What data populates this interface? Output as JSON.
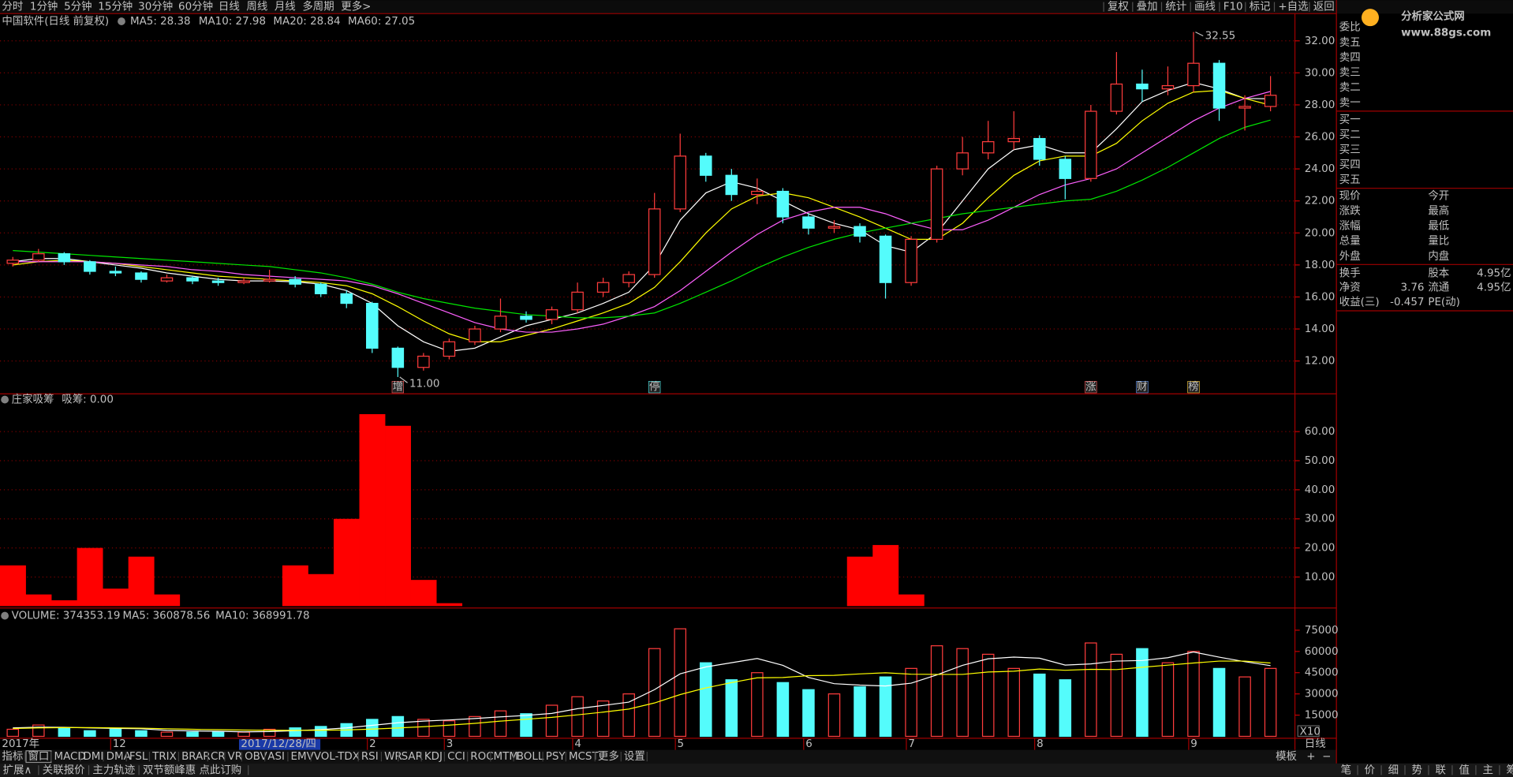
{
  "menu": {
    "tabs": [
      "分时",
      "1分钟",
      "5分钟",
      "15分钟",
      "30分钟",
      "60分钟",
      "日线",
      "周线",
      "月线",
      "多周期",
      "更多>"
    ],
    "active_index": 6,
    "tools": [
      "复权",
      "叠加",
      "统计",
      "画线",
      "F10",
      "标记",
      "+自选",
      "返回"
    ]
  },
  "logo": {
    "name": "分析家公式网",
    "url": "www.88gs.com"
  },
  "period_label": "日线",
  "chart_data": [
    {
      "type": "candlestick",
      "title": "中国软件(日线 前复权)",
      "categories": [
        "2017年",
        null,
        null,
        null,
        "12",
        null,
        null,
        null,
        null,
        "2017/12/28/四",
        null,
        null,
        null,
        null,
        "2",
        null,
        null,
        "3",
        null,
        null,
        null,
        null,
        "4",
        null,
        null,
        null,
        "5",
        null,
        null,
        null,
        null,
        "6",
        null,
        null,
        null,
        "7",
        null,
        null,
        null,
        null,
        "8",
        null,
        null,
        null,
        null,
        null,
        "9",
        null,
        null,
        null
      ],
      "open": [
        18.1,
        18.3,
        18.7,
        18.2,
        17.6,
        17.5,
        17.0,
        17.2,
        17.0,
        16.9,
        17.0,
        17.1,
        16.8,
        16.2,
        15.6,
        12.8,
        11.6,
        12.3,
        13.2,
        14.0,
        14.8,
        14.6,
        15.2,
        16.3,
        16.9,
        17.4,
        21.5,
        24.8,
        23.6,
        22.4,
        22.6,
        21.0,
        20.3,
        20.4,
        19.8,
        16.9,
        19.6,
        24.0,
        25.0,
        25.7,
        25.9,
        24.6,
        23.4,
        27.6,
        29.3,
        29.0,
        29.2,
        30.6,
        27.8,
        27.9
      ],
      "high": [
        18.5,
        19.0,
        18.8,
        18.3,
        17.9,
        17.6,
        17.4,
        17.3,
        17.2,
        17.2,
        17.7,
        17.3,
        16.9,
        16.4,
        15.7,
        12.9,
        12.5,
        13.4,
        14.2,
        15.9,
        15.1,
        15.4,
        16.9,
        17.2,
        17.6,
        22.5,
        26.2,
        25.0,
        24.0,
        23.4,
        22.8,
        21.2,
        20.8,
        20.6,
        19.9,
        19.8,
        24.2,
        26.0,
        27.0,
        27.6,
        26.1,
        24.8,
        28.0,
        31.3,
        30.2,
        30.4,
        32.55,
        30.8,
        28.6,
        29.8
      ],
      "low": [
        17.9,
        18.2,
        18.0,
        17.4,
        17.3,
        16.9,
        16.9,
        16.8,
        16.7,
        16.8,
        16.9,
        16.6,
        16.0,
        15.3,
        12.5,
        11.0,
        11.4,
        12.1,
        13.0,
        13.8,
        14.4,
        14.3,
        15.0,
        16.0,
        16.6,
        17.2,
        21.3,
        23.2,
        22.0,
        21.8,
        20.6,
        19.9,
        20.0,
        19.4,
        15.9,
        16.7,
        19.4,
        23.6,
        24.6,
        25.2,
        24.2,
        22.1,
        23.2,
        27.4,
        28.2,
        28.6,
        28.8,
        27.0,
        26.4,
        27.6
      ],
      "close": [
        18.3,
        18.7,
        18.2,
        17.6,
        17.5,
        17.1,
        17.2,
        17.0,
        16.9,
        17.0,
        17.1,
        16.8,
        16.2,
        15.6,
        12.8,
        11.6,
        12.3,
        13.2,
        14.0,
        14.8,
        14.6,
        15.2,
        16.3,
        16.9,
        17.4,
        21.5,
        24.8,
        23.6,
        22.4,
        22.6,
        21.0,
        20.3,
        20.4,
        19.8,
        16.9,
        19.6,
        24.0,
        25.0,
        25.7,
        25.9,
        24.6,
        23.4,
        27.6,
        29.3,
        29.0,
        29.2,
        30.6,
        27.8,
        27.9,
        28.6
      ],
      "up_color": "#ff3c3c",
      "down_color": "#54fcfc",
      "series": [
        {
          "name": "MA5: 28.38",
          "color": "#ffffff",
          "values": [
            18.2,
            18.4,
            18.4,
            18.2,
            18.0,
            17.8,
            17.5,
            17.3,
            17.1,
            17.0,
            17.0,
            16.95,
            16.8,
            16.4,
            15.6,
            14.2,
            13.2,
            12.6,
            12.8,
            13.5,
            14.2,
            14.6,
            15.0,
            15.6,
            16.3,
            18.0,
            20.8,
            22.5,
            23.2,
            22.8,
            22.0,
            21.2,
            20.6,
            20.2,
            19.2,
            18.8,
            20.0,
            22.0,
            24.0,
            25.2,
            25.5,
            25.0,
            25.0,
            26.5,
            28.2,
            28.9,
            29.4,
            29.0,
            28.4,
            28.38
          ]
        },
        {
          "name": "MA10: 27.98",
          "color": "#ffff00",
          "values": [
            18.0,
            18.2,
            18.3,
            18.2,
            18.1,
            17.9,
            17.7,
            17.5,
            17.3,
            17.2,
            17.1,
            17.0,
            16.9,
            16.7,
            16.2,
            15.4,
            14.5,
            13.7,
            13.2,
            13.2,
            13.6,
            14.0,
            14.5,
            15.0,
            15.6,
            16.6,
            18.2,
            20.0,
            21.5,
            22.3,
            22.5,
            22.2,
            21.6,
            21.0,
            20.3,
            19.6,
            19.6,
            20.6,
            22.2,
            23.6,
            24.5,
            24.8,
            24.8,
            25.6,
            27.0,
            28.1,
            28.8,
            28.9,
            28.4,
            27.98
          ]
        },
        {
          "name": "MA20: 28.84",
          "color": "#ff60ff",
          "values": [
            18.2,
            18.2,
            18.2,
            18.2,
            18.1,
            18.0,
            17.9,
            17.7,
            17.6,
            17.4,
            17.3,
            17.2,
            17.1,
            17.0,
            16.7,
            16.2,
            15.6,
            15.0,
            14.4,
            14.0,
            13.8,
            13.8,
            14.0,
            14.3,
            14.8,
            15.4,
            16.4,
            17.6,
            18.8,
            19.9,
            20.8,
            21.3,
            21.6,
            21.6,
            21.2,
            20.6,
            20.2,
            20.2,
            20.8,
            21.6,
            22.4,
            23.0,
            23.4,
            24.0,
            25.0,
            26.0,
            27.0,
            27.8,
            28.4,
            28.84
          ]
        },
        {
          "name": "MA60: 27.05",
          "color": "#00e600",
          "values": [
            18.9,
            18.8,
            18.7,
            18.6,
            18.5,
            18.4,
            18.3,
            18.2,
            18.1,
            18.0,
            17.9,
            17.7,
            17.5,
            17.2,
            16.8,
            16.3,
            15.9,
            15.6,
            15.3,
            15.1,
            14.9,
            14.8,
            14.7,
            14.7,
            14.8,
            15.0,
            15.6,
            16.3,
            17.0,
            17.8,
            18.5,
            19.1,
            19.6,
            20.0,
            20.3,
            20.6,
            20.9,
            21.2,
            21.4,
            21.6,
            21.8,
            22.0,
            22.1,
            22.6,
            23.3,
            24.1,
            25.0,
            25.9,
            26.6,
            27.05
          ]
        }
      ],
      "ylim": [
        9.95,
        33.7
      ],
      "yticks": [
        {
          "value": 12,
          "label": "12.00"
        },
        {
          "value": 14,
          "label": "14.00"
        },
        {
          "value": 16,
          "label": "16.00"
        },
        {
          "value": 18,
          "label": "18.00"
        },
        {
          "value": 20,
          "label": "20.00"
        },
        {
          "value": 22,
          "label": "22.00"
        },
        {
          "value": 24,
          "label": "24.00"
        },
        {
          "value": 26,
          "label": "26.00"
        },
        {
          "value": 28,
          "label": "28.00"
        },
        {
          "value": 30,
          "label": "30.00"
        },
        {
          "value": 32,
          "label": "32.00"
        }
      ],
      "grid": true,
      "annotations": [
        {
          "value": 32.55,
          "label": "32.55",
          "at": "high"
        },
        {
          "value": 11,
          "label": "11.00",
          "at": "low"
        }
      ],
      "events": [
        {
          "label": "增",
          "index": 15,
          "color": "#ff6060"
        },
        {
          "label": "停",
          "index": 25,
          "color": "#54fcfc"
        },
        {
          "label": "涨",
          "index": 42,
          "color": "#ff6060"
        },
        {
          "label": "财",
          "index": 44,
          "color": "#6aa0ff"
        },
        {
          "label": "榜",
          "index": 46,
          "color": "#ffd040"
        }
      ]
    },
    {
      "type": "bar",
      "title": "庄家吸筹",
      "series": [
        {
          "name": "吸筹: 0.00",
          "color": "#ff0000",
          "values": [
            14,
            4,
            2,
            20,
            6,
            17,
            4,
            0,
            0,
            0,
            0,
            14,
            11,
            30,
            66,
            62,
            9,
            1,
            0,
            0,
            0,
            0,
            0,
            0,
            0,
            0,
            0,
            0,
            0,
            0,
            0,
            0,
            0,
            17,
            21,
            4,
            0,
            0,
            0,
            0,
            0,
            0,
            0,
            0,
            0,
            0,
            0,
            0,
            0,
            0
          ]
        }
      ],
      "ylim": [
        0,
        73
      ],
      "yticks": [
        {
          "value": 10,
          "label": "10.00"
        },
        {
          "value": 20,
          "label": "20.00"
        },
        {
          "value": 30,
          "label": "30.00"
        },
        {
          "value": 40,
          "label": "40.00"
        },
        {
          "value": 50,
          "label": "50.00"
        },
        {
          "value": 60,
          "label": "60.00"
        }
      ],
      "grid": true
    },
    {
      "type": "volume",
      "series": [
        {
          "name": "VOLUME: 374353.19",
          "color": "#ffffff",
          "style": "bar",
          "values": [
            5000,
            8000,
            6000,
            4000,
            5000,
            4000,
            3000,
            3000,
            3000,
            3000,
            5000,
            6000,
            7000,
            9000,
            12000,
            14000,
            12000,
            11000,
            14000,
            18000,
            16000,
            22000,
            28000,
            25000,
            30000,
            62000,
            76000,
            52000,
            40000,
            45000,
            38000,
            33000,
            30000,
            35000,
            42000,
            48000,
            64000,
            62000,
            58000,
            48000,
            44000,
            40000,
            66000,
            58000,
            62000,
            52000,
            60000,
            48000,
            42000,
            48000
          ]
        },
        {
          "name": "MA5: 360878.56",
          "color": "#ffffff",
          "style": "line",
          "values": [
            6000,
            6500,
            6400,
            6000,
            5600,
            5400,
            4200,
            3800,
            3600,
            3200,
            3400,
            4000,
            4800,
            6000,
            7800,
            9600,
            10800,
            11600,
            12600,
            13800,
            14800,
            16200,
            19600,
            21800,
            24200,
            33000,
            44200,
            49000,
            52000,
            55000,
            50200,
            41600,
            37200,
            36200,
            35600,
            37600,
            43400,
            50200,
            54800,
            56000,
            55200,
            50400,
            51200,
            53200,
            53600,
            55600,
            59600,
            56000,
            52800,
            50000
          ]
        },
        {
          "name": "MA10: 368991.78",
          "color": "#ffff00",
          "style": "line",
          "values": [
            5500,
            6000,
            6200,
            6200,
            6000,
            5800,
            5400,
            5000,
            4700,
            4400,
            4300,
            4200,
            4300,
            4500,
            5100,
            5900,
            6800,
            7900,
            9200,
            10800,
            12100,
            13400,
            15200,
            17100,
            19300,
            23600,
            29500,
            34200,
            38000,
            41400,
            41600,
            42900,
            43100,
            44100,
            44900,
            43900,
            43800,
            43800,
            45500,
            46000,
            47600,
            46700,
            47400,
            47200,
            48800,
            50300,
            51800,
            53200,
            53200,
            51800
          ]
        }
      ],
      "up_color": "#ff3c3c",
      "down_color": "#54fcfc",
      "ylim": [
        0,
        90000
      ],
      "yticks": [
        15000,
        30000,
        45000,
        60000,
        75000
      ],
      "grid": false,
      "unit": "X10"
    }
  ],
  "quote_panel": {
    "title": "委比",
    "sell": [
      "卖五",
      "卖四",
      "卖三",
      "卖二",
      "卖一"
    ],
    "buy": [
      "买一",
      "买二",
      "买三",
      "买四",
      "买五"
    ],
    "fields": [
      [
        "现价",
        "今开"
      ],
      [
        "涨跌",
        "最高"
      ],
      [
        "涨幅",
        "最低"
      ],
      [
        "总量",
        "量比"
      ],
      [
        "外盘",
        "内盘"
      ]
    ],
    "fund": [
      [
        {
          "label": "换手"
        },
        {
          "label": "股本",
          "value": "4.95亿"
        }
      ],
      [
        {
          "label": "净资",
          "value": "3.76"
        },
        {
          "label": "流通",
          "value": "4.95亿"
        }
      ],
      [
        {
          "label": "收益(三)",
          "value": "-0.457"
        },
        {
          "label": "PE(动)"
        }
      ]
    ]
  },
  "toolbar": {
    "items": [
      "指标",
      "窗口",
      "MACD",
      "DMI",
      "DMA",
      "FSL",
      "TRIX",
      "BRAR",
      "CR",
      "VR",
      "OBV",
      "ASI",
      "EMV",
      "VOL-TDX",
      "RSI",
      "WR",
      "SAR",
      "KDJ",
      "CCI",
      "ROC",
      "MTM",
      "BOLL",
      "PSY",
      "MCST",
      "更多",
      "设置"
    ],
    "right": [
      "模板",
      "+",
      "−"
    ]
  },
  "status_bar": {
    "items": [
      "扩展∧",
      "关联报价",
      "主力轨迹",
      "双节额峰惠 点此订购"
    ],
    "icons": [
      "笔",
      "价",
      "细",
      "势",
      "联",
      "值",
      "主",
      "筹"
    ]
  }
}
